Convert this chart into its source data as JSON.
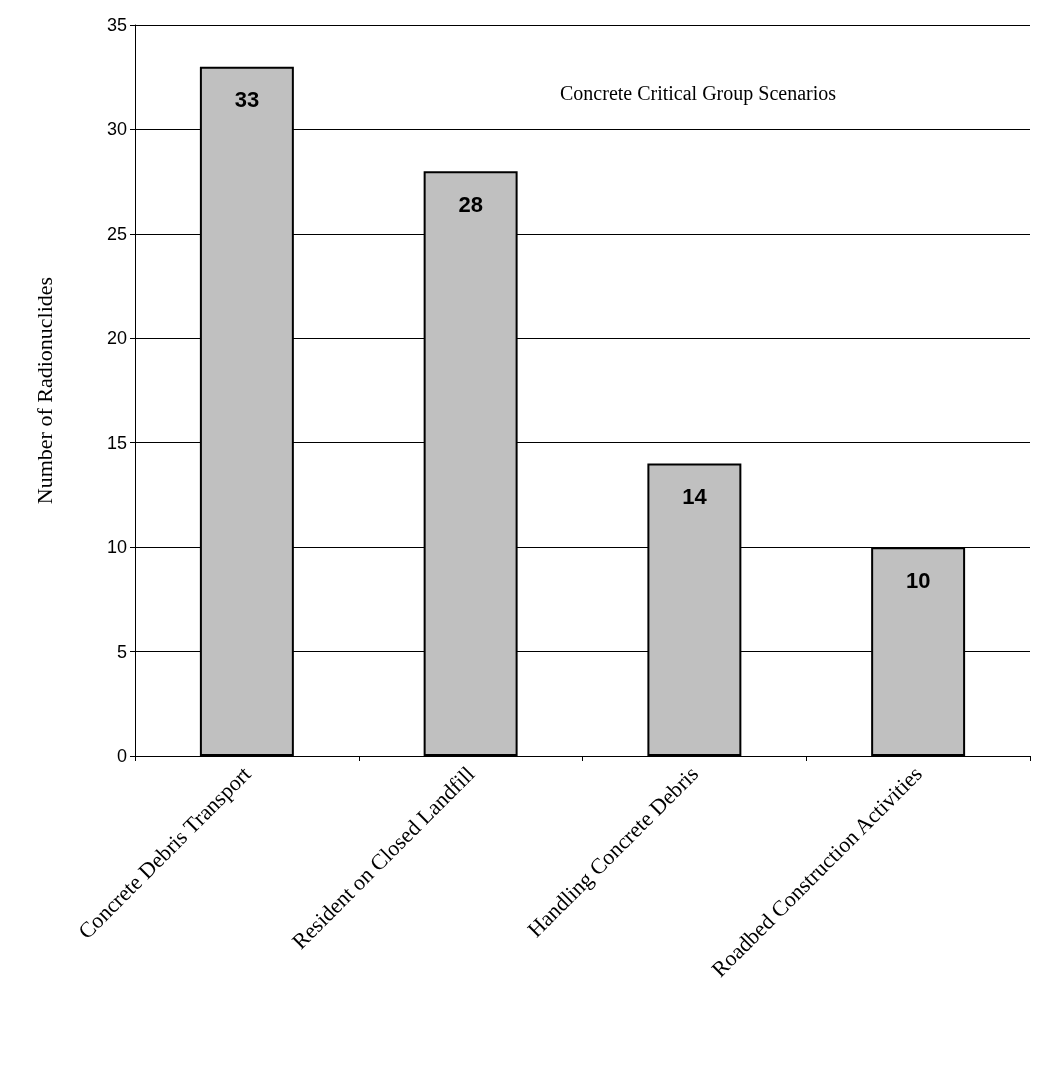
{
  "chart_data": {
    "type": "bar",
    "title": "Concrete Critical Group Scenarios",
    "ylabel": "Number of Radionuclides",
    "categories": [
      "Concrete Debris Transport",
      "Resident on Closed Landfill",
      "Handling Concrete Debris",
      "Roadbed Construction Activities"
    ],
    "values": [
      33,
      28,
      14,
      10
    ],
    "color": "#c0c0c0",
    "ylim": [
      0,
      35
    ],
    "yticks": [
      0,
      5,
      10,
      15,
      20,
      25,
      30,
      35
    ],
    "grid": "y",
    "data_labels": true
  }
}
